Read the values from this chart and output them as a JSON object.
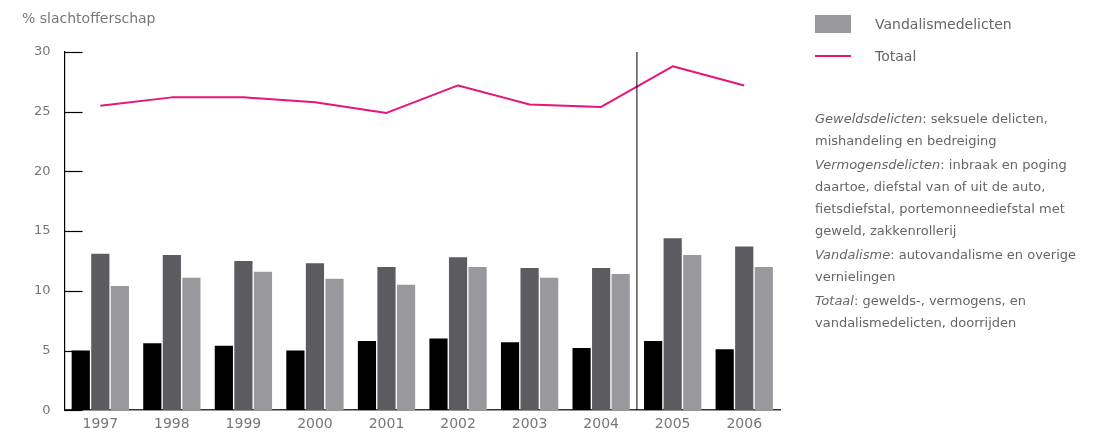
{
  "chart_data": {
    "type": "bar",
    "ylabel": "% slachtofferschap",
    "x": [
      1997,
      1998,
      1999,
      2000,
      2001,
      2002,
      2003,
      2004,
      2005,
      2006
    ],
    "xlim": [
      1996.5,
      2006.5
    ],
    "xticks": [
      1997,
      1998,
      1999,
      2000,
      2001,
      2002,
      2003,
      2004,
      2005,
      2006
    ],
    "ylim": [
      0,
      30
    ],
    "yticks": [
      0,
      5,
      10,
      15,
      20,
      25,
      30
    ],
    "grid": false,
    "legend": "right",
    "series": [
      {
        "color": "#000000",
        "values": [
          5.0,
          5.6,
          5.4,
          5.0,
          5.8,
          6.0,
          5.7,
          5.2,
          5.8,
          5.1
        ]
      },
      {
        "color": "#5c5b60",
        "values": [
          13.1,
          13.0,
          12.5,
          12.3,
          12.0,
          12.8,
          11.9,
          11.9,
          14.4,
          13.7
        ]
      },
      {
        "name": "Vandalismedelicten",
        "color": "#99989d",
        "values": [
          10.4,
          11.1,
          11.6,
          11.0,
          10.5,
          12.0,
          11.1,
          11.4,
          13.0,
          12.0
        ]
      },
      {
        "name": "Totaal",
        "type": "line",
        "color": "#e5157a",
        "values": [
          25.5,
          26.2,
          26.2,
          25.8,
          24.9,
          27.2,
          25.6,
          25.4,
          28.8,
          27.2
        ]
      }
    ],
    "ref_lines": [
      {
        "axis": "x",
        "value": 2004.5,
        "color": "#000000"
      }
    ],
    "annotations": [
      "Geweldsdelicten: seksuele delicten, mishandeling en bedreiging",
      "Vermogensdelicten: inbraak en poging daartoe, diefstal van of uit de auto, fietsdiefstal, portemonneediefstal met geweld, zakkenrollerij",
      "Vandalisme: autovandalisme en overige vernielingen",
      "Totaal: gewelds-, vermogens, en vandalismedelicten, doorrijden"
    ]
  }
}
